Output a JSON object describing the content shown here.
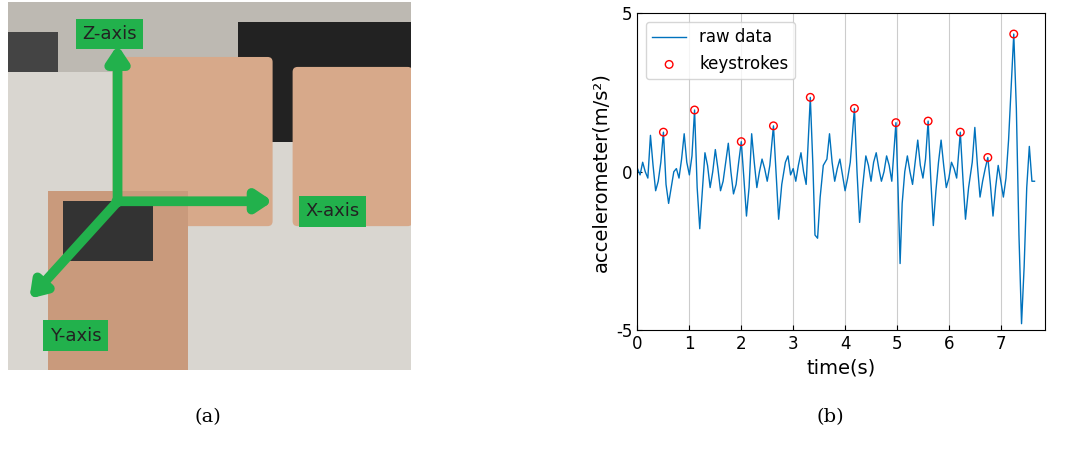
{
  "photo": {
    "axis_labels": [
      "Z-axis",
      "X-axis",
      "Y-axis"
    ]
  },
  "captions": [
    "(a)",
    "(b)"
  ],
  "chart_data": {
    "type": "line",
    "x_label": "time(s)",
    "y_label": "accelerometer(m/s²)",
    "xlim": [
      0,
      7.85
    ],
    "xticks": [
      0,
      1,
      2,
      3,
      4,
      5,
      6,
      7
    ],
    "ylim": [
      -5,
      5
    ],
    "yticks": [
      -5,
      0,
      5
    ],
    "grid": "x",
    "legend": "upper left",
    "series": [
      {
        "name": "raw data",
        "type": "line",
        "color": "#0072bd",
        "line_style": "solid",
        "x": [
          0.0,
          0.05,
          0.1,
          0.15,
          0.2,
          0.25,
          0.3,
          0.35,
          0.4,
          0.45,
          0.5,
          0.55,
          0.6,
          0.65,
          0.7,
          0.75,
          0.8,
          0.85,
          0.9,
          0.95,
          1.0,
          1.05,
          1.1,
          1.15,
          1.2,
          1.25,
          1.3,
          1.35,
          1.4,
          1.45,
          1.5,
          1.55,
          1.6,
          1.65,
          1.7,
          1.75,
          1.8,
          1.85,
          1.9,
          1.95,
          2.0,
          2.05,
          2.1,
          2.15,
          2.2,
          2.25,
          2.3,
          2.35,
          2.4,
          2.45,
          2.5,
          2.55,
          2.62,
          2.68,
          2.72,
          2.78,
          2.85,
          2.9,
          2.95,
          3.0,
          3.05,
          3.1,
          3.15,
          3.2,
          3.25,
          3.33,
          3.38,
          3.42,
          3.47,
          3.52,
          3.58,
          3.65,
          3.7,
          3.75,
          3.8,
          3.85,
          3.9,
          3.95,
          4.0,
          4.05,
          4.1,
          4.18,
          4.23,
          4.28,
          4.33,
          4.4,
          4.45,
          4.5,
          4.55,
          4.6,
          4.65,
          4.7,
          4.75,
          4.8,
          4.85,
          4.9,
          4.98,
          5.02,
          5.06,
          5.1,
          5.15,
          5.2,
          5.25,
          5.3,
          5.35,
          5.4,
          5.45,
          5.5,
          5.55,
          5.6,
          5.65,
          5.7,
          5.75,
          5.8,
          5.85,
          5.9,
          5.95,
          6.0,
          6.05,
          6.1,
          6.15,
          6.22,
          6.27,
          6.32,
          6.38,
          6.45,
          6.5,
          6.55,
          6.6,
          6.65,
          6.7,
          6.75,
          6.8,
          6.85,
          6.9,
          6.95,
          7.0,
          7.05,
          7.1,
          7.15,
          7.25,
          7.3,
          7.35,
          7.4,
          7.45,
          7.5,
          7.55,
          7.6,
          7.65
        ],
        "values": [
          0.1,
          -0.1,
          0.3,
          0.0,
          -0.2,
          1.15,
          0.2,
          -0.6,
          -0.3,
          0.3,
          1.25,
          -0.4,
          -1.0,
          -0.5,
          0.0,
          0.1,
          -0.2,
          0.4,
          1.2,
          0.3,
          -0.1,
          0.5,
          1.95,
          -0.5,
          -1.8,
          -0.6,
          0.6,
          0.2,
          -0.5,
          0.0,
          0.7,
          0.1,
          -0.6,
          -0.3,
          0.3,
          0.9,
          0.0,
          -0.7,
          -0.4,
          0.3,
          0.95,
          -0.2,
          -1.4,
          -0.5,
          1.2,
          0.3,
          -0.5,
          0.0,
          0.4,
          0.1,
          -0.3,
          0.2,
          1.45,
          -0.3,
          -1.5,
          -0.4,
          0.3,
          0.5,
          -0.1,
          0.1,
          -0.3,
          0.2,
          0.6,
          0.0,
          -0.4,
          2.35,
          0.2,
          -2.0,
          -2.1,
          -0.8,
          0.2,
          0.4,
          1.2,
          0.3,
          -0.3,
          0.1,
          0.4,
          -0.1,
          -0.6,
          -0.2,
          0.3,
          2.0,
          0.0,
          -1.6,
          -0.6,
          0.5,
          0.2,
          -0.3,
          0.3,
          0.6,
          0.1,
          -0.3,
          0.0,
          0.5,
          0.2,
          -0.3,
          1.55,
          -0.5,
          -2.9,
          -1.0,
          0.0,
          0.5,
          0.0,
          -0.4,
          0.3,
          1.0,
          0.2,
          -0.2,
          0.4,
          1.6,
          -0.2,
          -1.7,
          -0.6,
          0.3,
          1.0,
          0.2,
          -0.5,
          -0.2,
          0.3,
          0.1,
          -0.2,
          1.25,
          -0.2,
          -1.5,
          -0.5,
          0.3,
          1.4,
          0.2,
          -0.8,
          -0.3,
          0.1,
          0.45,
          -0.4,
          -1.4,
          -0.5,
          0.2,
          -0.3,
          -0.8,
          -0.2,
          1.0,
          4.35,
          2.0,
          -2.0,
          -4.8,
          -3.0,
          -0.5,
          0.8,
          -0.3,
          -0.3
        ]
      },
      {
        "name": "keystrokes",
        "type": "scatter",
        "color": "#ff0000",
        "marker": "circle",
        "x": [
          0.5,
          1.1,
          2.0,
          2.62,
          3.33,
          4.18,
          4.98,
          5.6,
          6.22,
          6.75,
          7.25
        ],
        "values": [
          1.25,
          1.95,
          0.95,
          1.45,
          2.35,
          2.0,
          1.55,
          1.6,
          1.25,
          0.45,
          4.35
        ]
      }
    ]
  }
}
